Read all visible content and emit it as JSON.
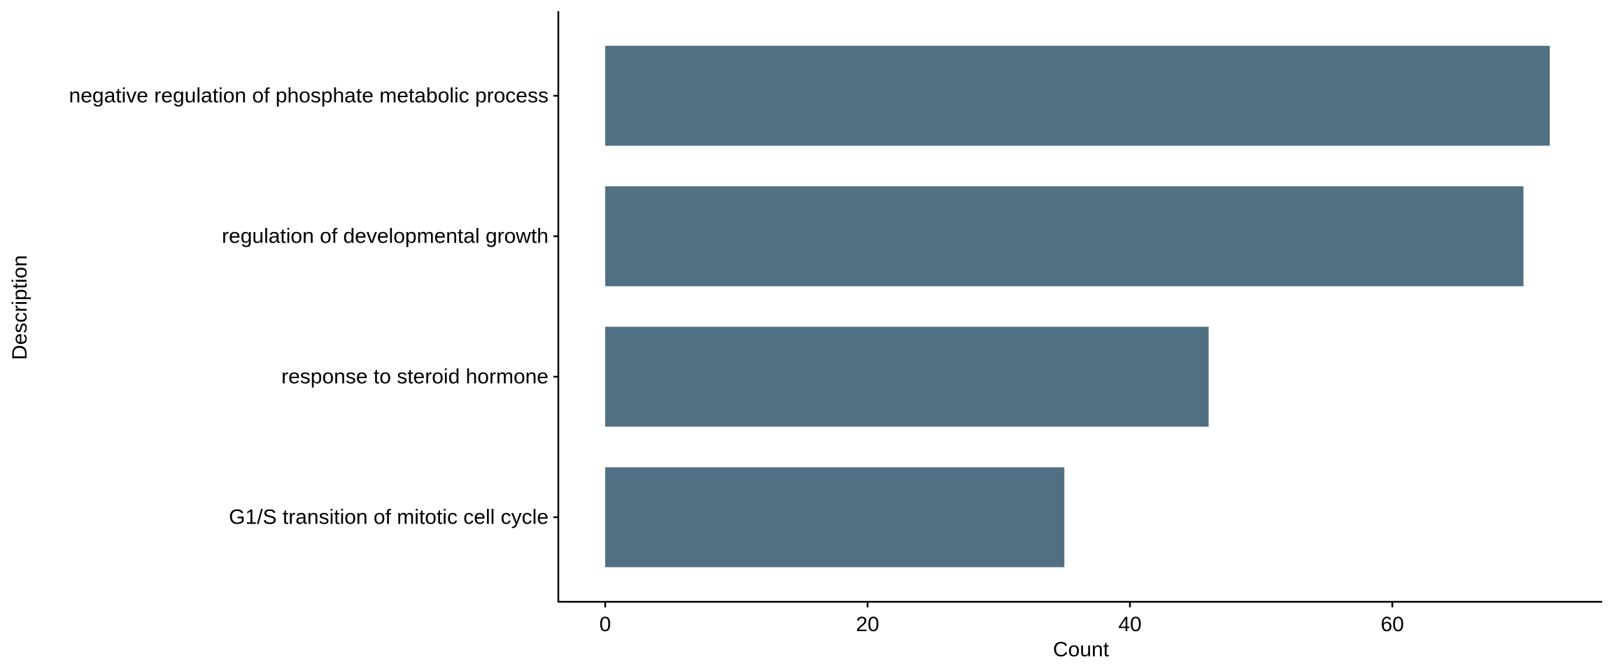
{
  "chart_data": {
    "type": "bar",
    "orientation": "horizontal",
    "categories": [
      "negative regulation of phosphate metabolic process",
      "regulation of developmental growth",
      "response to steroid hormone",
      "G1/S transition of mitotic cell cycle"
    ],
    "values": [
      72,
      70,
      46,
      35
    ],
    "xlabel": "Count",
    "ylabel": "Description",
    "xlim": [
      -3.5,
      75.5
    ],
    "xticks": [
      0,
      20,
      40,
      60
    ],
    "xtick_labels": [
      "0",
      "20",
      "40",
      "60"
    ],
    "bar_color": "#517083",
    "grid": false,
    "legend": "none"
  }
}
